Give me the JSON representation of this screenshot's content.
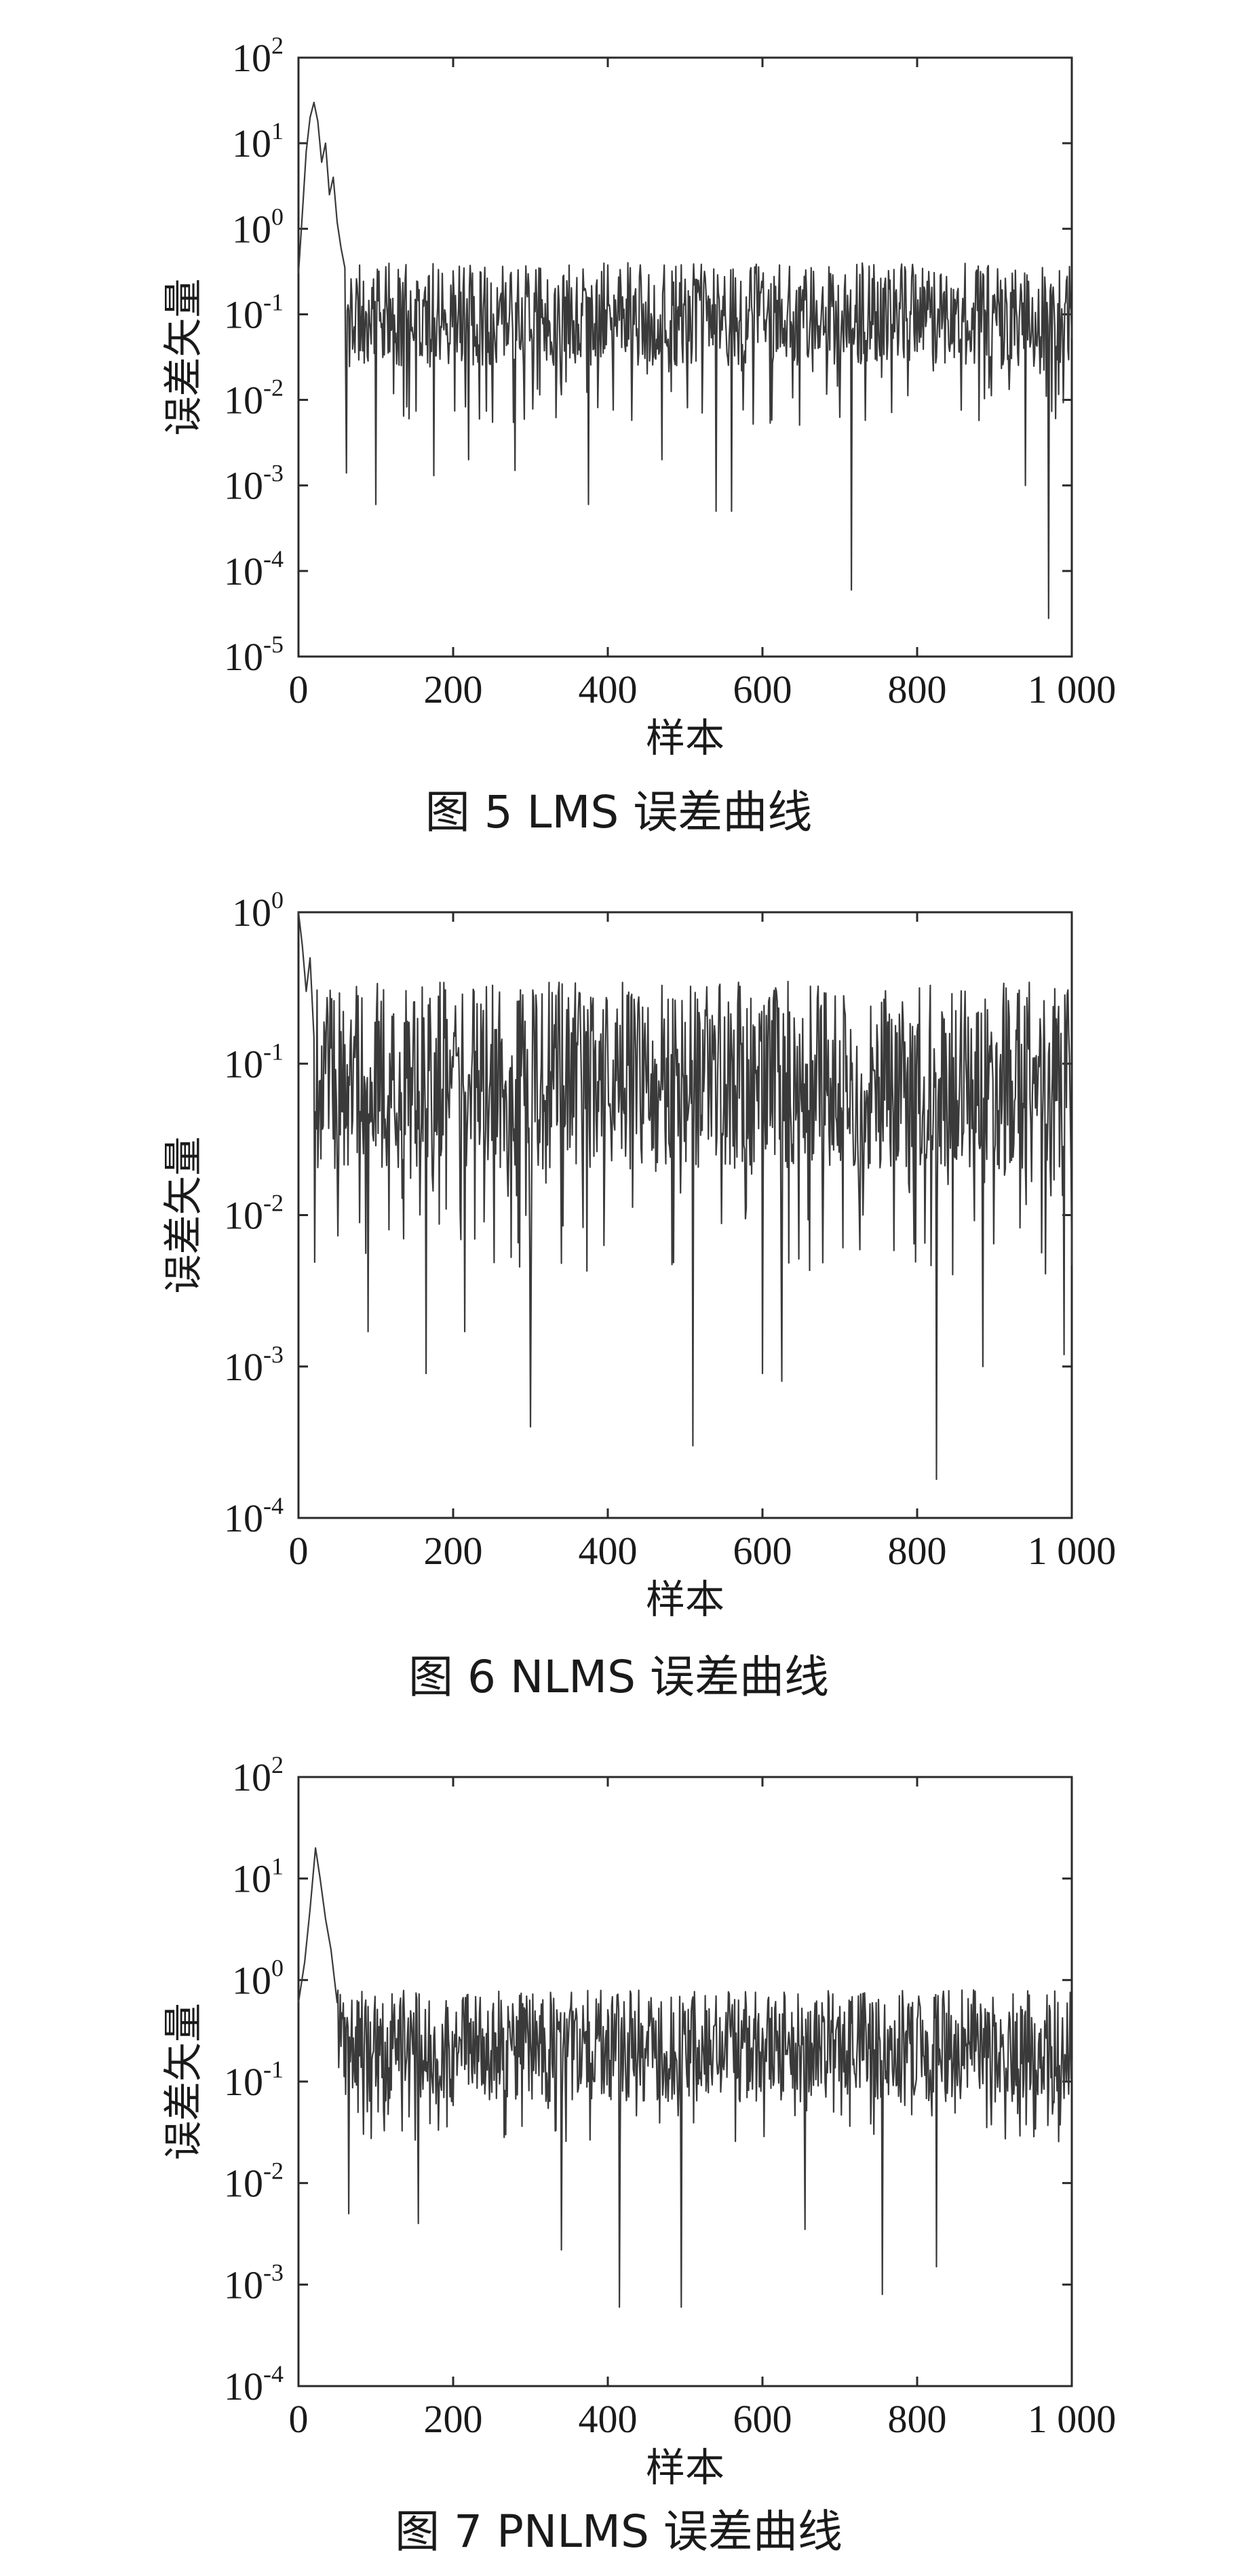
{
  "chart_data": [
    {
      "type": "line",
      "scale": "log-y",
      "xlabel": "样本",
      "ylabel": "误差矢量",
      "xlim": [
        0,
        1000
      ],
      "ylim_exp": [
        -5,
        2
      ],
      "x_ticks": [
        0,
        200,
        400,
        600,
        800,
        1000
      ],
      "x_tick_labels": [
        "0",
        "200",
        "400",
        "600",
        "800",
        "1 000"
      ],
      "y_tick_exponents": [
        -5,
        -4,
        -3,
        -2,
        -1,
        0,
        1,
        2
      ],
      "caption": "图 5  LMS 误差曲线",
      "series": [
        {
          "transient": [
            [
              0,
              0.3
            ],
            [
              5,
              1.5
            ],
            [
              10,
              8
            ],
            [
              15,
              20
            ],
            [
              20,
              30
            ],
            [
              25,
              18
            ],
            [
              30,
              6
            ],
            [
              35,
              10
            ],
            [
              40,
              2.5
            ],
            [
              45,
              4
            ],
            [
              50,
              1.2
            ],
            [
              55,
              0.6
            ],
            [
              60,
              0.35
            ],
            [
              62,
              0.0014
            ]
          ],
          "spikes": [
            [
              100,
              0.0006
            ],
            [
              175,
              0.0013
            ],
            [
              220,
              0.002
            ],
            [
              280,
              0.0015
            ],
            [
              375,
              0.0006
            ],
            [
              470,
              0.002
            ],
            [
              540,
              0.0005
            ],
            [
              560,
              0.0005
            ],
            [
              715,
              6e-05
            ],
            [
              940,
              0.001
            ],
            [
              970,
              2.8e-05
            ]
          ],
          "steady_level": 0.1,
          "steady_floor_exp": -2.3,
          "steady_peak": 0.4,
          "seed": 11
        }
      ]
    },
    {
      "type": "line",
      "scale": "log-y",
      "xlabel": "样本",
      "ylabel": "误差矢量",
      "xlim": [
        0,
        1000
      ],
      "ylim_exp": [
        -4,
        0
      ],
      "x_ticks": [
        0,
        200,
        400,
        600,
        800,
        1000
      ],
      "x_tick_labels": [
        "0",
        "200",
        "400",
        "600",
        "800",
        "1 000"
      ],
      "y_tick_exponents": [
        -4,
        -3,
        -2,
        -1,
        0
      ],
      "caption": "图 6  NLMS 误差曲线",
      "series": [
        {
          "transient": [
            [
              0,
              1.0
            ],
            [
              5,
              0.6
            ],
            [
              10,
              0.3
            ],
            [
              15,
              0.5
            ],
            [
              20,
              0.15
            ]
          ],
          "spikes": [
            [
              90,
              0.0017
            ],
            [
              165,
              0.0009
            ],
            [
              215,
              0.0017
            ],
            [
              300,
              0.0004
            ],
            [
              510,
              0.0003
            ],
            [
              600,
              0.0009
            ],
            [
              625,
              0.0008
            ],
            [
              825,
              0.00018
            ],
            [
              885,
              0.001
            ],
            [
              990,
              0.0012
            ]
          ],
          "steady_level": 0.08,
          "steady_floor_exp": -2.4,
          "steady_peak": 0.35,
          "seed": 23
        }
      ]
    },
    {
      "type": "line",
      "scale": "log-y",
      "xlabel": "样本",
      "ylabel": "误差矢量",
      "xlim": [
        0,
        1000
      ],
      "ylim_exp": [
        -4,
        2
      ],
      "x_ticks": [
        0,
        200,
        400,
        600,
        800,
        1000
      ],
      "x_tick_labels": [
        "0",
        "200",
        "400",
        "600",
        "800",
        "1 000"
      ],
      "y_tick_exponents": [
        -4,
        -3,
        -2,
        -1,
        0,
        1,
        2
      ],
      "caption": "图 7  PNLMS 误差曲线",
      "series": [
        {
          "transient": [
            [
              0,
              0.6
            ],
            [
              8,
              1.5
            ],
            [
              15,
              5
            ],
            [
              22,
              20
            ],
            [
              28,
              10
            ],
            [
              35,
              4
            ],
            [
              42,
              2
            ],
            [
              50,
              0.6
            ]
          ],
          "spikes": [
            [
              65,
              0.005
            ],
            [
              155,
              0.004
            ],
            [
              340,
              0.0022
            ],
            [
              415,
              0.0006
            ],
            [
              495,
              0.0006
            ],
            [
              655,
              0.0035
            ],
            [
              755,
              0.0008
            ],
            [
              825,
              0.0015
            ]
          ],
          "steady_level": 0.25,
          "steady_floor_exp": -1.6,
          "steady_peak": 0.8,
          "seed": 37
        }
      ]
    }
  ]
}
